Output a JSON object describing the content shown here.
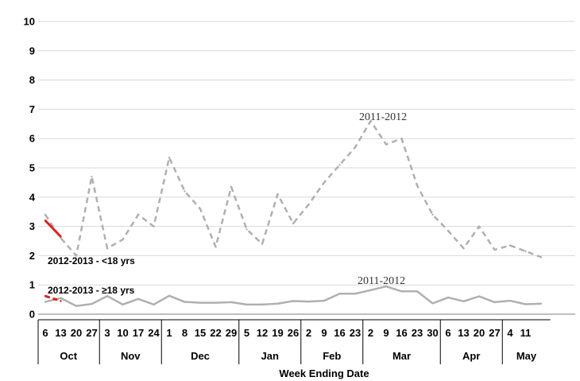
{
  "chart_data": {
    "type": "line",
    "xlabel": "Week Ending Date",
    "ylabel": "",
    "ylim": [
      0,
      10
    ],
    "yticks": [
      "0",
      "1",
      "2",
      "3",
      "4",
      "5",
      "6",
      "7",
      "8",
      "9",
      "10"
    ],
    "grid": "horizontal",
    "legend": "none",
    "x_ticks": [
      "6",
      "13",
      "20",
      "27",
      "3",
      "10",
      "17",
      "24",
      "1",
      "8",
      "15",
      "22",
      "29",
      "5",
      "12",
      "19",
      "26",
      "2",
      "9",
      "16",
      "23",
      "2",
      "9",
      "16",
      "23",
      "30",
      "6",
      "13",
      "20",
      "27",
      "4",
      "11",
      ""
    ],
    "months": [
      {
        "label": "Oct",
        "start": 0,
        "end": 3
      },
      {
        "label": "Nov",
        "start": 4,
        "end": 7
      },
      {
        "label": "Dec",
        "start": 8,
        "end": 12
      },
      {
        "label": "Jan",
        "start": 13,
        "end": 16
      },
      {
        "label": "Feb",
        "start": 17,
        "end": 20
      },
      {
        "label": "Mar",
        "start": 21,
        "end": 25
      },
      {
        "label": "Apr",
        "start": 26,
        "end": 29
      },
      {
        "label": "May",
        "start": 30,
        "end": 32
      }
    ],
    "series": [
      {
        "annotation": "2011-2012",
        "color": "#b0b0b0",
        "style": "dashed",
        "values": [
          3.4,
          2.6,
          2.0,
          4.7,
          2.25,
          2.55,
          3.4,
          3.0,
          5.35,
          4.2,
          3.6,
          2.3,
          4.35,
          2.9,
          2.4,
          4.1,
          3.1,
          3.75,
          4.5,
          5.1,
          5.7,
          6.6,
          5.8,
          6.0,
          4.4,
          3.4,
          2.85,
          2.25,
          3.0,
          2.2,
          2.35,
          2.15,
          1.95
        ]
      },
      {
        "annotation": "2011-2012",
        "color": "#b0b0b0",
        "style": "solid",
        "values": [
          0.42,
          0.55,
          0.28,
          0.35,
          0.62,
          0.33,
          0.52,
          0.33,
          0.63,
          0.42,
          0.39,
          0.39,
          0.41,
          0.33,
          0.33,
          0.36,
          0.45,
          0.43,
          0.46,
          0.7,
          0.7,
          0.82,
          0.95,
          0.78,
          0.78,
          0.37,
          0.57,
          0.44,
          0.61,
          0.41,
          0.46,
          0.34,
          0.36
        ]
      },
      {
        "annotation": "2012-2013 - <18 yrs",
        "color": "#e0201b",
        "style": "solid",
        "values": [
          3.2,
          2.65
        ]
      },
      {
        "annotation": "2012-2013 - ≥18 yrs",
        "color": "#e0201b",
        "style": "dashed",
        "values": [
          0.62,
          0.45
        ]
      }
    ]
  }
}
